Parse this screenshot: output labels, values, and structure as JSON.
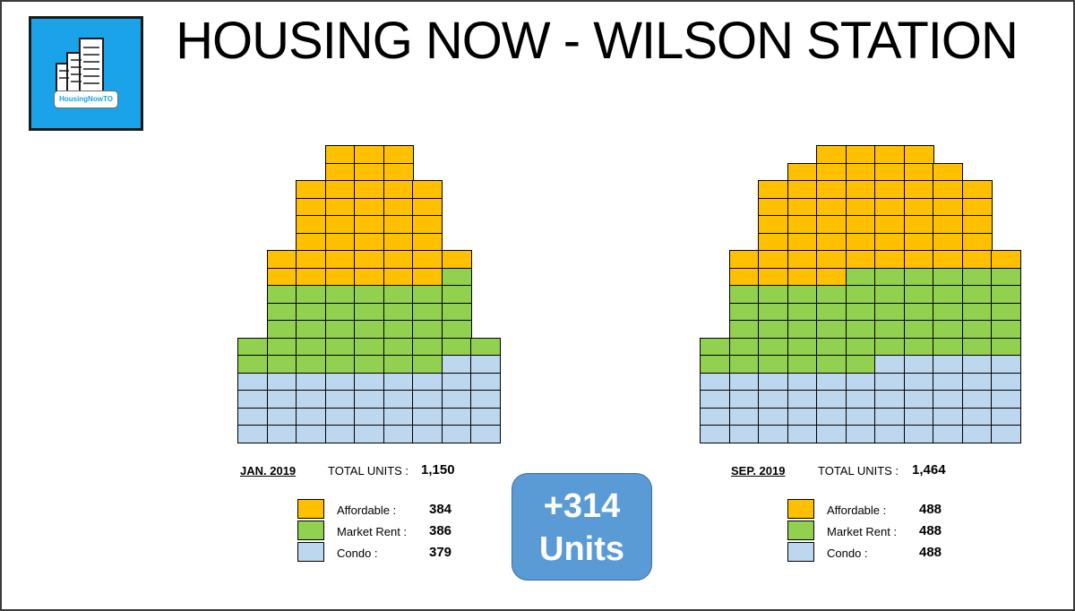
{
  "header": {
    "title": "HOUSING NOW - WILSON STATION",
    "logo_text": "HousingNowTO"
  },
  "colors": {
    "affordable": "#ffc000",
    "market_rent": "#92d050",
    "condo": "#bdd7ee",
    "badge": "#5b9bd5",
    "logo_bg": "#1aa3e8"
  },
  "delta_badge": {
    "line1": "+314",
    "line2": "Units"
  },
  "chart_data": [
    {
      "type": "unit-block-diagram",
      "date": "JAN. 2019",
      "total_label": "TOTAL UNITS :",
      "total": "1,150",
      "legend": [
        {
          "label": "Affordable :",
          "value": "384"
        },
        {
          "label": "Market Rent :",
          "value": "386"
        },
        {
          "label": "Condo :",
          "value": "379"
        }
      ],
      "rows": [
        {
          "start": 3,
          "cells": [
            "A",
            "A",
            "A"
          ]
        },
        {
          "start": 3,
          "cells": [
            "A",
            "A",
            "A"
          ]
        },
        {
          "start": 2,
          "cells": [
            "A",
            "A",
            "A",
            "A",
            "A"
          ]
        },
        {
          "start": 2,
          "cells": [
            "A",
            "A",
            "A",
            "A",
            "A"
          ]
        },
        {
          "start": 2,
          "cells": [
            "A",
            "A",
            "A",
            "A",
            "A"
          ]
        },
        {
          "start": 2,
          "cells": [
            "A",
            "A",
            "A",
            "A",
            "A"
          ]
        },
        {
          "start": 1,
          "cells": [
            "A",
            "A",
            "A",
            "A",
            "A",
            "A",
            "A"
          ]
        },
        {
          "start": 1,
          "cells": [
            "A",
            "A",
            "A",
            "A",
            "A",
            "A",
            "M"
          ]
        },
        {
          "start": 1,
          "cells": [
            "M",
            "M",
            "M",
            "M",
            "M",
            "M",
            "M"
          ]
        },
        {
          "start": 1,
          "cells": [
            "M",
            "M",
            "M",
            "M",
            "M",
            "M",
            "M"
          ]
        },
        {
          "start": 1,
          "cells": [
            "M",
            "M",
            "M",
            "M",
            "M",
            "M",
            "M"
          ]
        },
        {
          "start": 0,
          "cells": [
            "M",
            "M",
            "M",
            "M",
            "M",
            "M",
            "M",
            "M",
            "M"
          ]
        },
        {
          "start": 0,
          "cells": [
            "M",
            "M",
            "M",
            "M",
            "M",
            "M",
            "M",
            "C",
            "C"
          ]
        },
        {
          "start": 0,
          "cells": [
            "C",
            "C",
            "C",
            "C",
            "C",
            "C",
            "C",
            "C",
            "C"
          ]
        },
        {
          "start": 0,
          "cells": [
            "C",
            "C",
            "C",
            "C",
            "C",
            "C",
            "C",
            "C",
            "C"
          ]
        },
        {
          "start": 0,
          "cells": [
            "C",
            "C",
            "C",
            "C",
            "C",
            "C",
            "C",
            "C",
            "C"
          ]
        },
        {
          "start": 0,
          "cells": [
            "C",
            "C",
            "C",
            "C",
            "C",
            "C",
            "C",
            "C",
            "C"
          ]
        }
      ]
    },
    {
      "type": "unit-block-diagram",
      "date": "SEP. 2019",
      "total_label": "TOTAL UNITS :",
      "total": "1,464",
      "legend": [
        {
          "label": "Affordable :",
          "value": "488"
        },
        {
          "label": "Market Rent :",
          "value": "488"
        },
        {
          "label": "Condo :",
          "value": "488"
        }
      ],
      "rows": [
        {
          "start": 4,
          "cells": [
            "A",
            "A",
            "A",
            "A"
          ]
        },
        {
          "start": 3,
          "cells": [
            "A",
            "A",
            "A",
            "A",
            "A",
            "A"
          ]
        },
        {
          "start": 2,
          "cells": [
            "A",
            "A",
            "A",
            "A",
            "A",
            "A",
            "A",
            "A"
          ]
        },
        {
          "start": 2,
          "cells": [
            "A",
            "A",
            "A",
            "A",
            "A",
            "A",
            "A",
            "A"
          ]
        },
        {
          "start": 2,
          "cells": [
            "A",
            "A",
            "A",
            "A",
            "A",
            "A",
            "A",
            "A"
          ]
        },
        {
          "start": 2,
          "cells": [
            "A",
            "A",
            "A",
            "A",
            "A",
            "A",
            "A",
            "A"
          ]
        },
        {
          "start": 1,
          "cells": [
            "A",
            "A",
            "A",
            "A",
            "A",
            "A",
            "A",
            "A",
            "A",
            "A"
          ]
        },
        {
          "start": 1,
          "cells": [
            "A",
            "A",
            "A",
            "A",
            "M",
            "M",
            "M",
            "M",
            "M",
            "M"
          ]
        },
        {
          "start": 1,
          "cells": [
            "M",
            "M",
            "M",
            "M",
            "M",
            "M",
            "M",
            "M",
            "M",
            "M"
          ]
        },
        {
          "start": 1,
          "cells": [
            "M",
            "M",
            "M",
            "M",
            "M",
            "M",
            "M",
            "M",
            "M",
            "M"
          ]
        },
        {
          "start": 1,
          "cells": [
            "M",
            "M",
            "M",
            "M",
            "M",
            "M",
            "M",
            "M",
            "M",
            "M"
          ]
        },
        {
          "start": 0,
          "cells": [
            "M",
            "M",
            "M",
            "M",
            "M",
            "M",
            "M",
            "M",
            "M",
            "M",
            "M"
          ]
        },
        {
          "start": 0,
          "cells": [
            "M",
            "M",
            "M",
            "M",
            "M",
            "M",
            "C",
            "C",
            "C",
            "C",
            "C"
          ]
        },
        {
          "start": 0,
          "cells": [
            "C",
            "C",
            "C",
            "C",
            "C",
            "C",
            "C",
            "C",
            "C",
            "C",
            "C"
          ]
        },
        {
          "start": 0,
          "cells": [
            "C",
            "C",
            "C",
            "C",
            "C",
            "C",
            "C",
            "C",
            "C",
            "C",
            "C"
          ]
        },
        {
          "start": 0,
          "cells": [
            "C",
            "C",
            "C",
            "C",
            "C",
            "C",
            "C",
            "C",
            "C",
            "C",
            "C"
          ]
        },
        {
          "start": 0,
          "cells": [
            "C",
            "C",
            "C",
            "C",
            "C",
            "C",
            "C",
            "C",
            "C",
            "C",
            "C"
          ]
        }
      ]
    }
  ]
}
